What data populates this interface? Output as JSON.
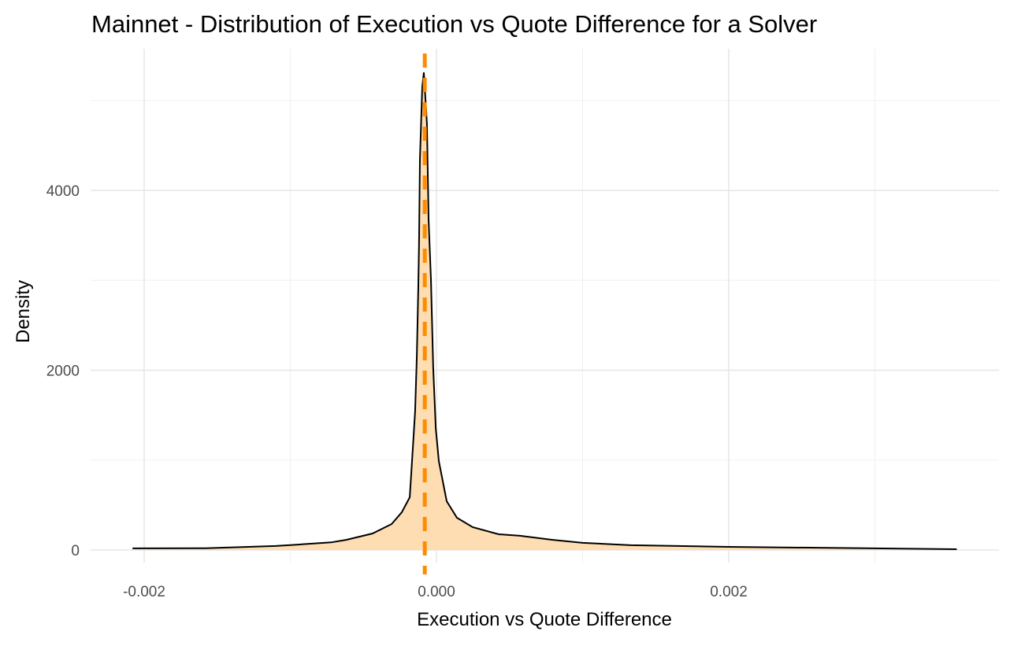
{
  "chart_data": {
    "type": "area",
    "title": "Mainnet - Distribution of Execution vs Quote Difference for a Solver",
    "xlabel": "Execution vs Quote Difference",
    "ylabel": "Density",
    "xlim": [
      -0.00235,
      0.00385
    ],
    "ylim": [
      -270,
      5600
    ],
    "x_ticks": [
      {
        "value": -0.002,
        "label": "-0.002"
      },
      {
        "value": 0.0,
        "label": "0.000"
      },
      {
        "value": 0.002,
        "label": "0.002"
      }
    ],
    "x_minor": [
      -0.001,
      0.001,
      0.003
    ],
    "y_ticks": [
      {
        "value": 0,
        "label": "0"
      },
      {
        "value": 2000,
        "label": "2000"
      },
      {
        "value": 4000,
        "label": "4000"
      }
    ],
    "y_minor": [
      1000,
      3000,
      5000
    ],
    "grid": true,
    "fill_color": "#FDDDB1",
    "line_color": "#000000",
    "mean_line": {
      "x": -8e-05,
      "color": "#FF8C00",
      "style": "dashed"
    },
    "series": [
      {
        "name": "density",
        "x": [
          -0.00208,
          -0.00158,
          -0.0011,
          -0.001,
          -0.00072,
          -0.000615,
          -0.000437,
          -0.000307,
          -0.000237,
          -0.000183,
          -0.000167,
          -0.000146,
          -0.000135,
          -0.000124,
          -0.000119,
          -0.000113,
          -9.7e-05,
          -8.6e-05,
          -6.5e-05,
          -5.4e-05,
          -3.8e-05,
          -2.2e-05,
          -5e-06,
          1.6e-05,
          7e-05,
          0.00014,
          0.000248,
          0.000426,
          0.000571,
          0.00079,
          0.001,
          0.00133,
          0.002,
          0.003,
          0.00356
        ],
        "y": [
          18,
          20,
          45,
          55,
          85,
          114,
          184,
          289,
          420,
          586,
          989,
          1540,
          2127,
          2941,
          3422,
          4341,
          5155,
          5313,
          4744,
          3676,
          3011,
          2022,
          1357,
          989,
          543,
          359,
          254,
          175,
          158,
          114,
          80,
          53,
          35,
          18,
          9
        ]
      }
    ]
  }
}
